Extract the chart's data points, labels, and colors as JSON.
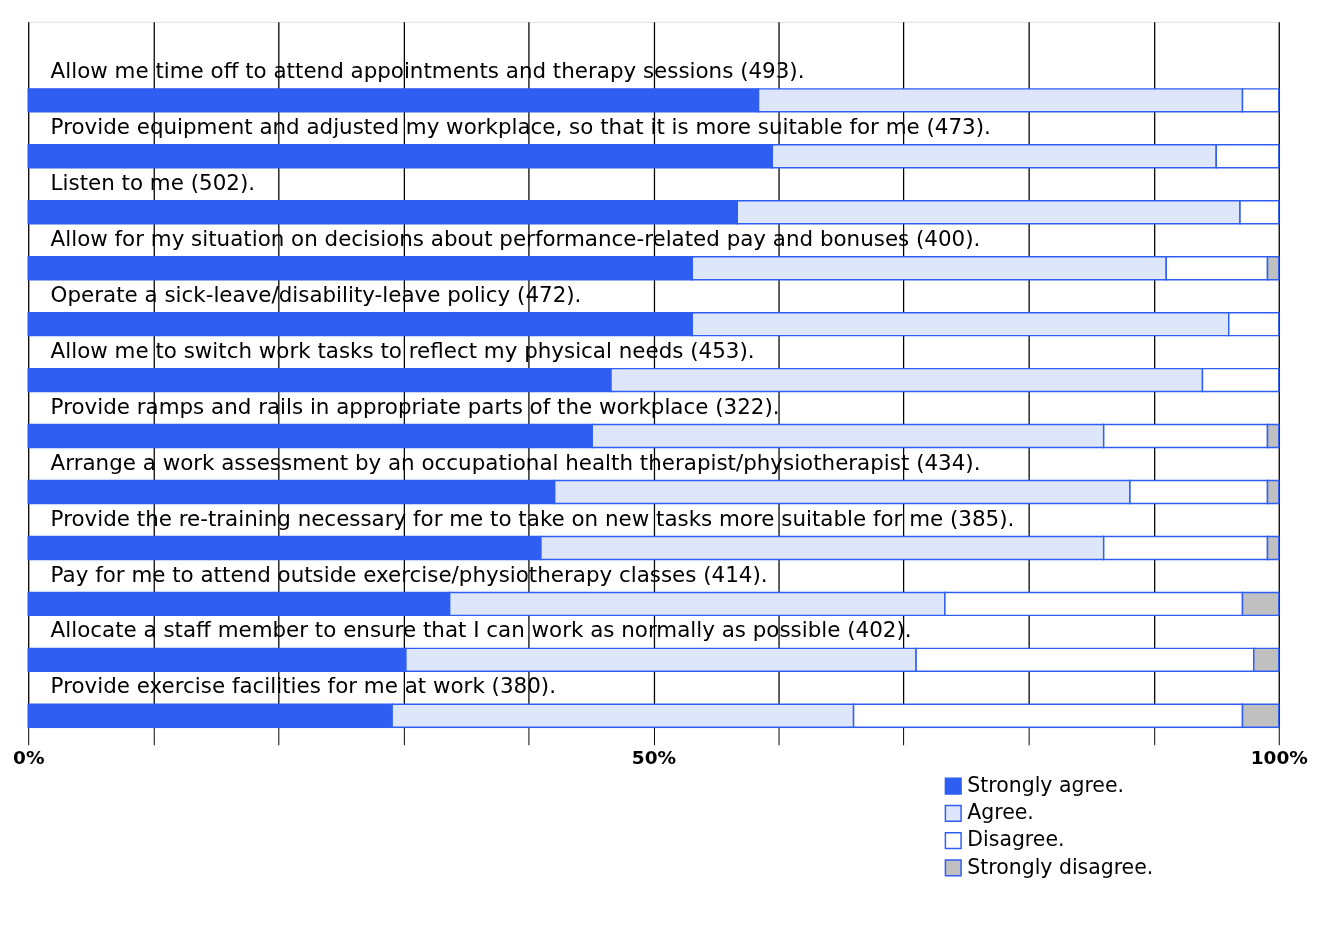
{
  "chart_data": {
    "type": "bar",
    "orientation": "horizontal",
    "stacked": true,
    "categories": [
      "Allow me time off to attend appointments and therapy sessions (493).",
      "Provide equipment and adjusted my workplace, so that it is more suitable for me (473).",
      "Listen to me (502).",
      "Allow for my situation on decisions about performance-related pay and bonuses (400).",
      "Operate a sick-leave/disability-leave policy (472).",
      "Allow me to switch work tasks to reflect my physical needs (453).",
      "Provide ramps and rails in appropriate parts of the workplace (322).",
      "Arrange a work assessment by an occupational health therapist/physiotherapist (434).",
      "Provide the re-training necessary for me to take on new tasks more suitable for me (385).",
      "Pay for me to attend outside exercise/physiotherapy classes (414).",
      "Allocate a staff member to ensure that I can work as normally as possible (402).",
      "Provide exercise facilities for me at work (380)."
    ],
    "series": [
      {
        "name": "Strongly agree.",
        "color": "#2e5ef2",
        "values": [
          58.4,
          59.5,
          56.7,
          53.1,
          53.1,
          46.6,
          45.1,
          42.1,
          41.0,
          33.7,
          30.2,
          29.1
        ]
      },
      {
        "name": "Agree.",
        "color": "#dde6fb",
        "values": [
          38.7,
          35.5,
          40.2,
          37.9,
          42.9,
          47.3,
          40.9,
          46.0,
          45.0,
          39.6,
          40.8,
          36.9
        ]
      },
      {
        "name": "Disagree.",
        "color": "#ffffff",
        "values": [
          2.9,
          5.0,
          3.1,
          8.1,
          4.0,
          6.1,
          13.1,
          11.0,
          13.1,
          23.8,
          27.0,
          31.1
        ]
      },
      {
        "name": "Strongly disagree.",
        "color": "#c0c0c0",
        "values": [
          null,
          null,
          null,
          0.9,
          null,
          null,
          0.9,
          0.9,
          0.9,
          2.9,
          2.0,
          2.9
        ]
      }
    ],
    "xlim": [
      0,
      100
    ],
    "xticks": [
      {
        "value": 0,
        "label": "0%"
      },
      {
        "value": 10,
        "label": null
      },
      {
        "value": 20,
        "label": null
      },
      {
        "value": 30,
        "label": null
      },
      {
        "value": 40,
        "label": null
      },
      {
        "value": 50,
        "label": "50%"
      },
      {
        "value": 60,
        "label": null
      },
      {
        "value": 70,
        "label": null
      },
      {
        "value": 80,
        "label": null
      },
      {
        "value": 90,
        "label": null
      },
      {
        "value": 100,
        "label": "100%"
      }
    ],
    "grid": "x",
    "legend": "bottom right"
  }
}
